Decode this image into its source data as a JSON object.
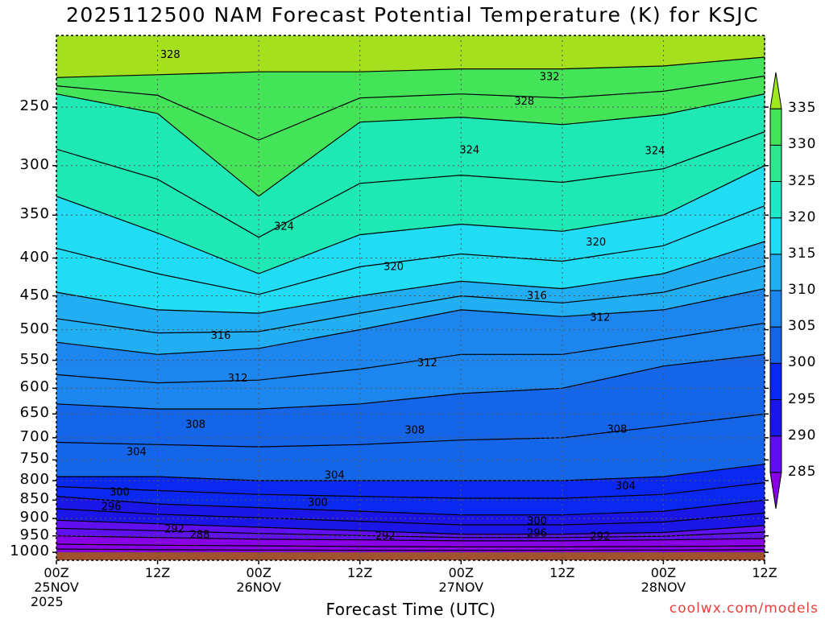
{
  "chart_data": {
    "type": "contour",
    "title": "2025112500 NAM Forecast Potential Temperature (K) for KSJC",
    "xlabel": "Forecast Time (UTC)",
    "ylabel": "",
    "x_ticks": [
      {
        "label": "00Z",
        "sub": "25NOV",
        "sub2": "2025",
        "hours": 0
      },
      {
        "label": "12Z",
        "sub": "",
        "sub2": "",
        "hours": 12
      },
      {
        "label": "00Z",
        "sub": "26NOV",
        "sub2": "",
        "hours": 24
      },
      {
        "label": "12Z",
        "sub": "",
        "sub2": "",
        "hours": 36
      },
      {
        "label": "00Z",
        "sub": "27NOV",
        "sub2": "",
        "hours": 48
      },
      {
        "label": "12Z",
        "sub": "",
        "sub2": "",
        "hours": 60
      },
      {
        "label": "00Z",
        "sub": "28NOV",
        "sub2": "",
        "hours": 72
      },
      {
        "label": "12Z",
        "sub": "",
        "sub2": "",
        "hours": 84
      }
    ],
    "xlim_hours": [
      0,
      84
    ],
    "y_ticks": [
      250,
      300,
      350,
      400,
      450,
      500,
      550,
      600,
      650,
      700,
      750,
      800,
      850,
      900,
      950,
      1000
    ],
    "ylim_pressure": [
      1025,
      200
    ],
    "colorbar": {
      "ticks": [
        285,
        290,
        295,
        300,
        305,
        310,
        315,
        320,
        325,
        330,
        335
      ],
      "colors": [
        "#8a00e6",
        "#6010f0",
        "#1a16e8",
        "#0a28f0",
        "#1565e8",
        "#1d86ee",
        "#22aef2",
        "#20dcf5",
        "#1ee8c8",
        "#2ee890",
        "#44e458",
        "#a0e81e"
      ]
    },
    "contour_labels": [
      {
        "value": "328",
        "hours": 13.5,
        "p": 212
      },
      {
        "value": "332",
        "hours": 58.5,
        "p": 227
      },
      {
        "value": "328",
        "hours": 55.5,
        "p": 245
      },
      {
        "value": "324",
        "hours": 49,
        "p": 285
      },
      {
        "value": "324",
        "hours": 71,
        "p": 286
      },
      {
        "value": "324",
        "hours": 27,
        "p": 362
      },
      {
        "value": "320",
        "hours": 64,
        "p": 380
      },
      {
        "value": "320",
        "hours": 40,
        "p": 410
      },
      {
        "value": "316",
        "hours": 57,
        "p": 449
      },
      {
        "value": "312",
        "hours": 64.5,
        "p": 480
      },
      {
        "value": "316",
        "hours": 19.5,
        "p": 508
      },
      {
        "value": "312",
        "hours": 44,
        "p": 553
      },
      {
        "value": "312",
        "hours": 21.5,
        "p": 580
      },
      {
        "value": "308",
        "hours": 16.5,
        "p": 670
      },
      {
        "value": "308",
        "hours": 42.5,
        "p": 682
      },
      {
        "value": "308",
        "hours": 66.5,
        "p": 680
      },
      {
        "value": "304",
        "hours": 9.5,
        "p": 730
      },
      {
        "value": "304",
        "hours": 33,
        "p": 785
      },
      {
        "value": "304",
        "hours": 67.5,
        "p": 812
      },
      {
        "value": "300",
        "hours": 7.5,
        "p": 827
      },
      {
        "value": "300",
        "hours": 31,
        "p": 855
      },
      {
        "value": "296",
        "hours": 6.5,
        "p": 865
      },
      {
        "value": "300",
        "hours": 57,
        "p": 905
      },
      {
        "value": "292",
        "hours": 14,
        "p": 928
      },
      {
        "value": "296",
        "hours": 57,
        "p": 940
      },
      {
        "value": "288",
        "hours": 17,
        "p": 945
      },
      {
        "value": "292",
        "hours": 39,
        "p": 948
      },
      {
        "value": "292",
        "hours": 64.5,
        "p": 950
      }
    ],
    "grid": true,
    "ground_color": "#a0522d"
  },
  "credit": "coolwx.com/models"
}
